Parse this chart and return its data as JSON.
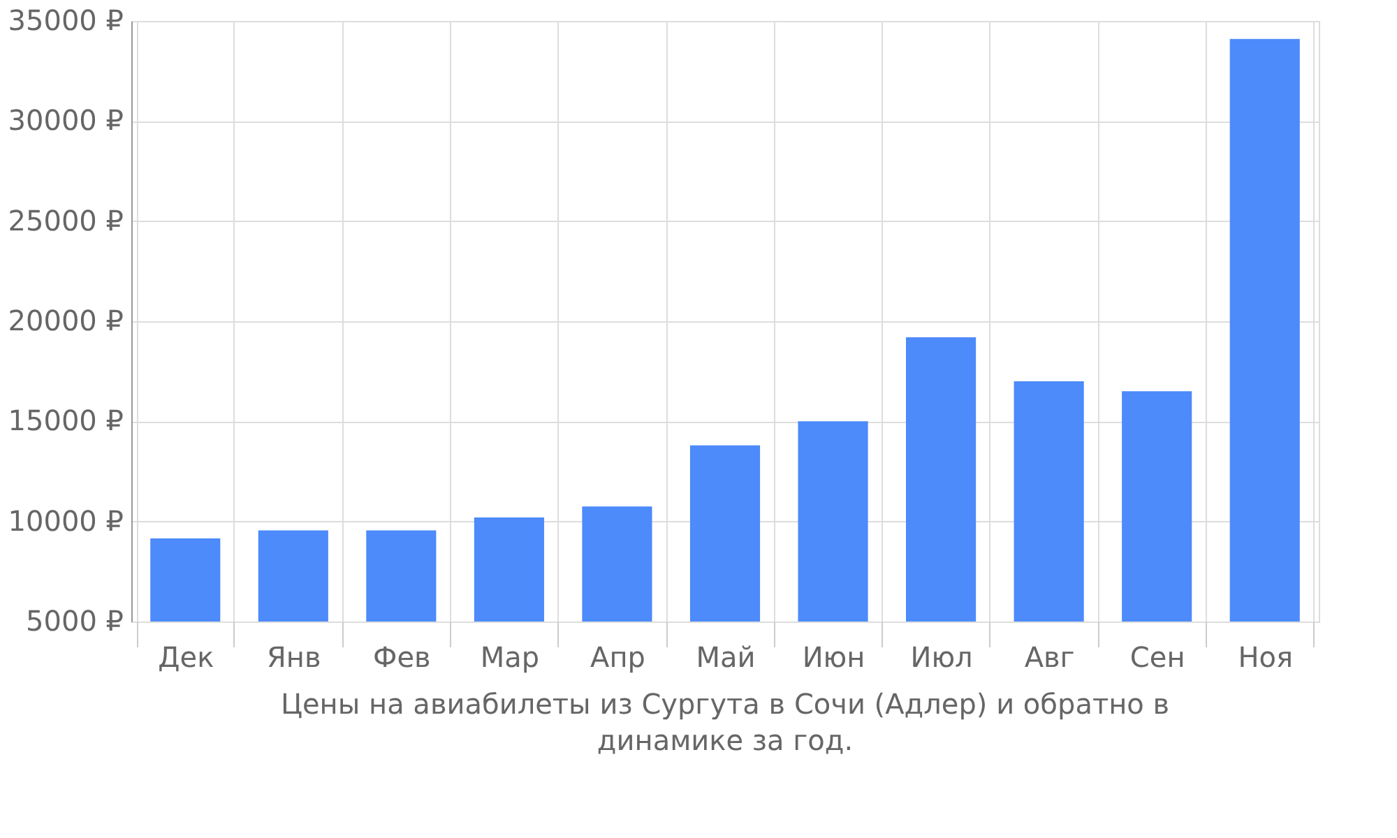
{
  "chart_data": {
    "type": "bar",
    "title": "Цены на авиабилеты из Сургута в Сочи (Адлер) и обратно в динамике за год.",
    "categories": [
      "Дек",
      "Янв",
      "Фев",
      "Мар",
      "Апр",
      "Май",
      "Июн",
      "Июл",
      "Авг",
      "Сен",
      "Ноя"
    ],
    "values": [
      9150,
      9550,
      9550,
      10200,
      10750,
      13800,
      15000,
      19200,
      17000,
      16500,
      34100
    ],
    "color": "#4d8afa",
    "ylim": [
      5000,
      35000
    ],
    "yticks": [
      {
        "value": 5000,
        "label": "5000 ₽"
      },
      {
        "value": 10000,
        "label": "10000 ₽"
      },
      {
        "value": 15000,
        "label": "15000 ₽"
      },
      {
        "value": 20000,
        "label": "20000 ₽"
      },
      {
        "value": 25000,
        "label": "25000 ₽"
      },
      {
        "value": 30000,
        "label": "30000 ₽"
      },
      {
        "value": 35000,
        "label": "35000 ₽"
      }
    ],
    "grid": true
  }
}
